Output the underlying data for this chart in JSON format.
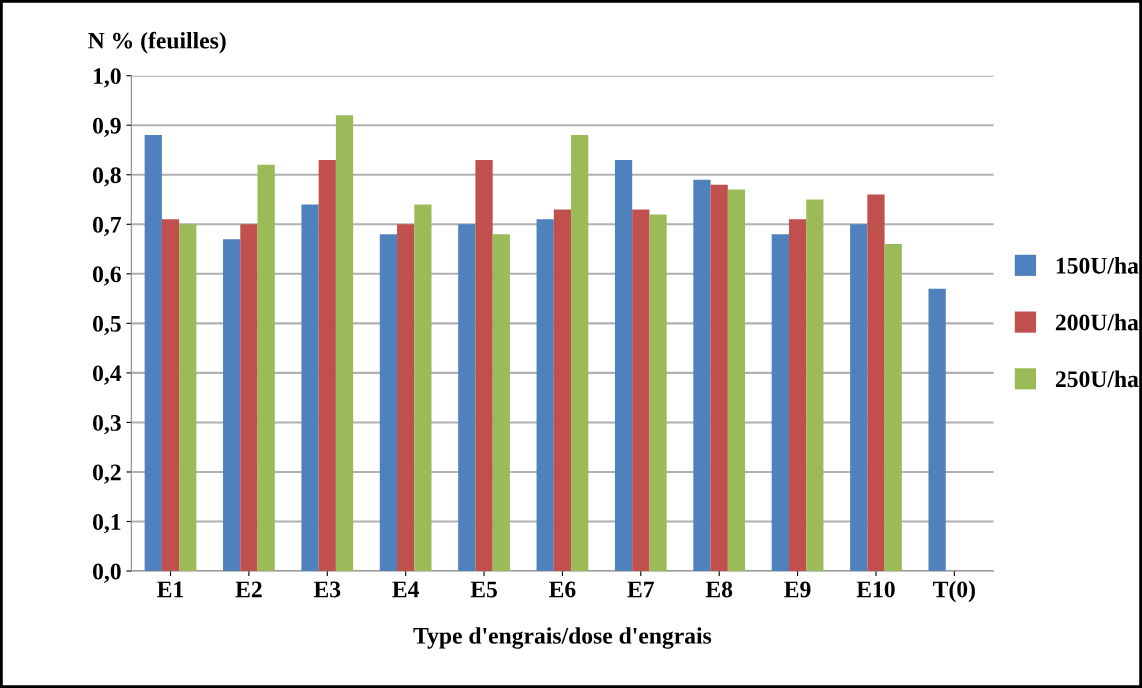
{
  "chart_data": {
    "type": "bar",
    "ylabel": "N % (feuilles)",
    "xlabel": "Type d'engrais/dose d'engrais",
    "categories": [
      "E1",
      "E2",
      "E3",
      "E4",
      "E5",
      "E6",
      "E7",
      "E8",
      "E9",
      "E10",
      "T(0)"
    ],
    "series": [
      {
        "name": "150U/ha",
        "color": "#4f81bd",
        "values": [
          0.88,
          0.67,
          0.74,
          0.68,
          0.7,
          0.71,
          0.83,
          0.79,
          0.68,
          0.7,
          0.57
        ]
      },
      {
        "name": "200U/ha",
        "color": "#c0504d",
        "values": [
          0.71,
          0.7,
          0.83,
          0.7,
          0.83,
          0.73,
          0.73,
          0.78,
          0.71,
          0.76,
          null
        ]
      },
      {
        "name": "250U/ha",
        "color": "#9bbb59",
        "values": [
          0.7,
          0.82,
          0.92,
          0.74,
          0.68,
          0.88,
          0.72,
          0.77,
          0.75,
          0.66,
          null
        ]
      }
    ],
    "ylim": [
      0,
      1
    ],
    "yticks": [
      {
        "value": 0,
        "label": "0,0"
      },
      {
        "value": 0.1,
        "label": "0,1"
      },
      {
        "value": 0.2,
        "label": "0,2"
      },
      {
        "value": 0.3,
        "label": "0,3"
      },
      {
        "value": 0.4,
        "label": "0,4"
      },
      {
        "value": 0.5,
        "label": "0,5"
      },
      {
        "value": 0.6,
        "label": "0,6"
      },
      {
        "value": 0.7,
        "label": "0,7"
      },
      {
        "value": 0.8,
        "label": "0,8"
      },
      {
        "value": 0.9,
        "label": "0,9"
      },
      {
        "value": 1.0,
        "label": "1,0"
      }
    ],
    "grid": "y",
    "legend": "right"
  }
}
